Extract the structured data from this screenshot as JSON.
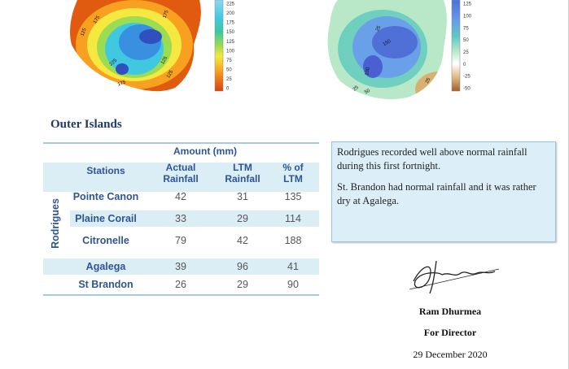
{
  "maps": [
    {
      "colorbar": [
        "225",
        "200",
        "175",
        "150",
        "125",
        "100",
        "75",
        "50",
        "25",
        "0"
      ],
      "contour_labels": [
        "175",
        "125",
        "175",
        "225",
        "175",
        "125",
        "125"
      ]
    },
    {
      "colorbar": [
        "125",
        "100",
        "75",
        "50",
        "25",
        "0",
        "-25",
        "-50"
      ],
      "contour_labels": [
        "25",
        "150",
        "100",
        "25",
        "50",
        "25"
      ]
    }
  ],
  "section_title": "Outer Islands",
  "table": {
    "group_header": "Amount (mm)",
    "columns": [
      "Stations",
      "Actual Rainfall",
      "LTM Rainfall",
      "% of LTM"
    ],
    "group_label": "Rodrigues",
    "rows": [
      [
        "Pointe Canon",
        "42",
        "31",
        "135"
      ],
      [
        "Plaine Corail",
        "33",
        "29",
        "114"
      ],
      [
        "Citronelle",
        "79",
        "42",
        "188"
      ],
      [
        "Agalega",
        "39",
        "96",
        "41"
      ],
      [
        "St Brandon",
        "26",
        "29",
        "90"
      ]
    ]
  },
  "note": [
    "Rodrigues recorded well above normal rainfall during this first fortnight.",
    "St. Brandon had normal rainfall and it was rather dry at Agalega."
  ],
  "signatory": {
    "name": "Ram Dhurmea",
    "role": "For Director",
    "date": "29 December 2020"
  }
}
